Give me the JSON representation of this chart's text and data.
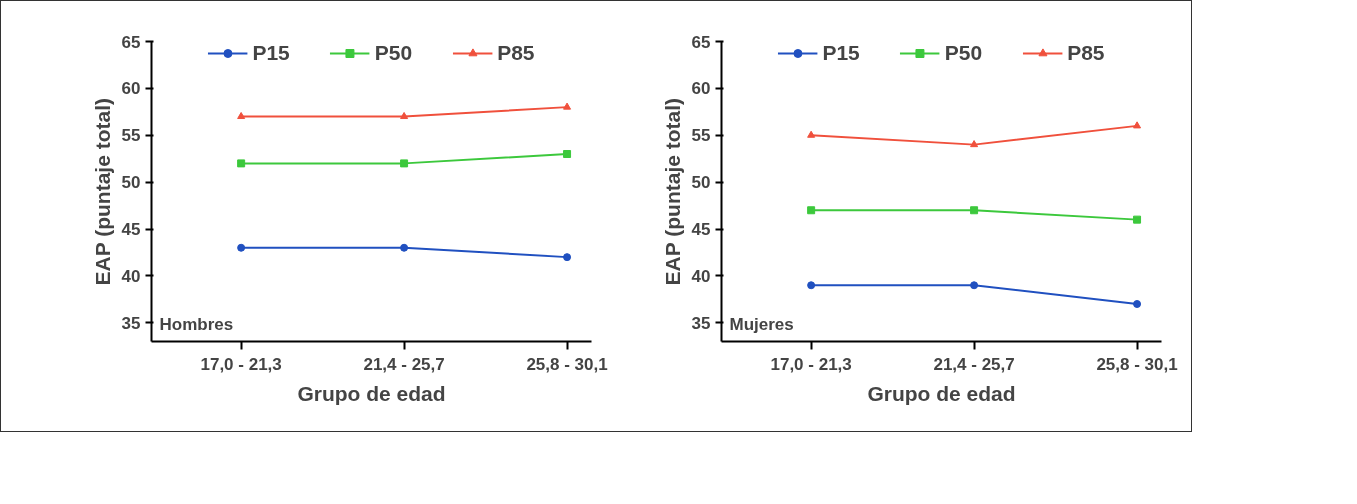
{
  "chart_data": [
    {
      "type": "line",
      "xlabel": "Grupo de edad",
      "ylabel": "EAP (puntaje total)",
      "categories": [
        "17,0 - 21,3",
        "21,4 - 25,7",
        "25,8 - 30,1"
      ],
      "ylim": [
        33,
        65
      ],
      "yticks": [
        35,
        40,
        45,
        50,
        55,
        60,
        65
      ],
      "grid": false,
      "legend": "top",
      "annotations": [
        "Hombres"
      ],
      "series": [
        {
          "name": "P15",
          "color": "#2050c0",
          "marker": "circle",
          "values": [
            43,
            43,
            42
          ]
        },
        {
          "name": "P50",
          "color": "#3cc83c",
          "marker": "square",
          "values": [
            52,
            52,
            53
          ]
        },
        {
          "name": "P85",
          "color": "#f0503c",
          "marker": "triangle",
          "values": [
            57,
            57,
            58
          ]
        }
      ]
    },
    {
      "type": "line",
      "xlabel": "Grupo de edad",
      "ylabel": "EAP (puntaje total)",
      "categories": [
        "17,0 - 21,3",
        "21,4 - 25,7",
        "25,8 - 30,1"
      ],
      "ylim": [
        33,
        65
      ],
      "yticks": [
        35,
        40,
        45,
        50,
        55,
        60,
        65
      ],
      "grid": false,
      "legend": "top",
      "annotations": [
        "Mujeres"
      ],
      "series": [
        {
          "name": "P15",
          "color": "#2050c0",
          "marker": "circle",
          "values": [
            39,
            39,
            37
          ]
        },
        {
          "name": "P50",
          "color": "#3cc83c",
          "marker": "square",
          "values": [
            47,
            47,
            46
          ]
        },
        {
          "name": "P85",
          "color": "#f0503c",
          "marker": "triangle",
          "values": [
            55,
            54,
            56
          ]
        }
      ]
    }
  ]
}
